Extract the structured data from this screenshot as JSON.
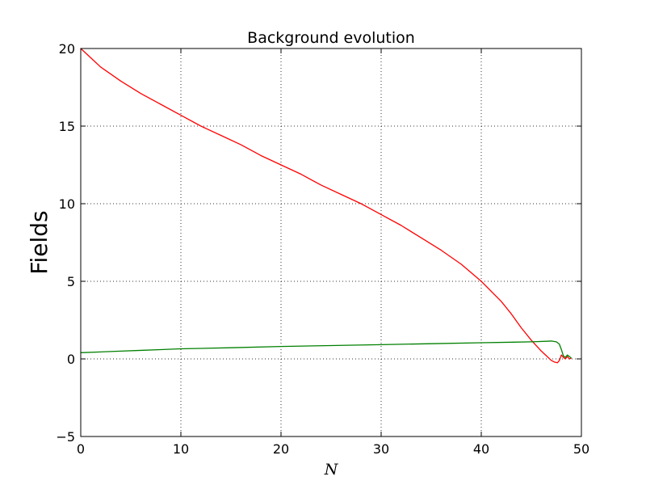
{
  "chart_data": {
    "type": "line",
    "title": "Background evolution",
    "xlabel": "N",
    "ylabel": "Fields",
    "xlim": [
      0,
      50
    ],
    "ylim": [
      -5,
      20
    ],
    "xticks": [
      0,
      10,
      20,
      30,
      40,
      50
    ],
    "xtick_labels": [
      "0",
      "10",
      "20",
      "30",
      "40",
      "50"
    ],
    "yticks": [
      -5,
      0,
      5,
      10,
      15,
      20
    ],
    "ytick_labels": [
      "−5",
      "0",
      "5",
      "10",
      "15",
      "20"
    ],
    "grid": true,
    "series": [
      {
        "color": "#ff0000",
        "x": [
          0,
          1,
          2,
          4,
          6,
          8,
          10,
          12,
          14,
          16,
          18,
          20,
          22,
          24,
          26,
          28,
          30,
          32,
          34,
          36,
          38,
          40,
          42,
          43,
          44,
          45,
          46,
          46.5,
          47,
          47.3,
          47.6,
          47.8,
          48,
          48.2,
          48.4,
          48.6,
          48.8,
          49
        ],
        "y": [
          20,
          19.4,
          18.8,
          17.9,
          17.1,
          16.4,
          15.7,
          15.0,
          14.4,
          13.8,
          13.1,
          12.5,
          11.9,
          11.2,
          10.6,
          10.0,
          9.3,
          8.6,
          7.8,
          7.0,
          6.1,
          5.0,
          3.7,
          2.9,
          2.0,
          1.2,
          0.5,
          0.2,
          -0.1,
          -0.2,
          -0.25,
          -0.1,
          0.25,
          0.1,
          0.0,
          0.15,
          0.0,
          0.05
        ]
      },
      {
        "color": "#008000",
        "x": [
          0,
          2,
          4,
          6,
          8,
          10,
          15,
          20,
          25,
          30,
          35,
          40,
          45,
          47,
          47.5,
          47.8,
          48,
          48.2,
          48.4,
          48.6,
          48.8,
          49
        ],
        "y": [
          0.4,
          0.45,
          0.5,
          0.55,
          0.6,
          0.65,
          0.72,
          0.8,
          0.86,
          0.92,
          0.98,
          1.04,
          1.1,
          1.15,
          1.1,
          0.95,
          0.6,
          0.2,
          0.1,
          0.25,
          0.15,
          0.05
        ]
      }
    ]
  }
}
